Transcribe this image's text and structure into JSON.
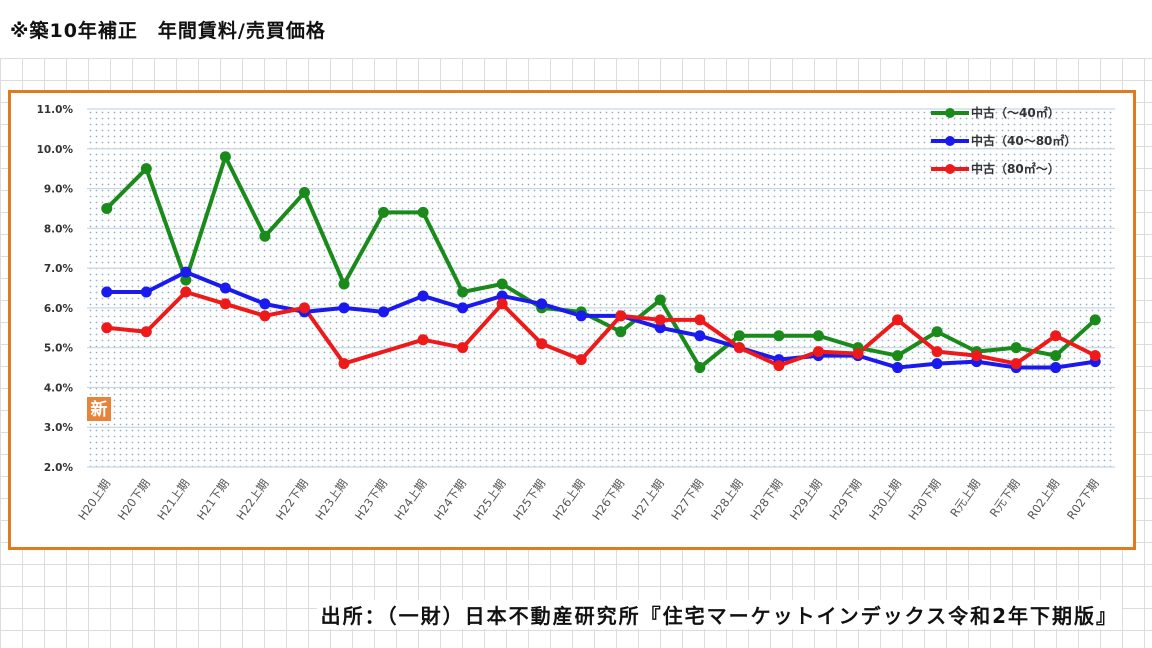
{
  "heading": "※築10年補正　年間賃料/売買価格",
  "source_note": "出所：（一財）日本不動産研究所『住宅マーケットインデックス令和2年下期版』",
  "badge": "新",
  "colors": {
    "frame": "#e07b1f",
    "green": "#1a8a1a",
    "blue": "#1a1aee",
    "red": "#ee1a1a",
    "badge": "#e8843a"
  },
  "chart_data": {
    "type": "line",
    "title": "",
    "xlabel": "",
    "ylabel": "",
    "ylim": [
      2.0,
      11.0
    ],
    "y_ticks": [
      "2.0%",
      "3.0%",
      "4.0%",
      "5.0%",
      "6.0%",
      "7.0%",
      "8.0%",
      "9.0%",
      "10.0%",
      "11.0%"
    ],
    "grid": true,
    "legend_position": "top-right",
    "categories": [
      "H20上期",
      "H20下期",
      "H21上期",
      "H21下期",
      "H22上期",
      "H22下期",
      "H23上期",
      "H23下期",
      "H24上期",
      "H24下期",
      "H25上期",
      "H25下期",
      "H26上期",
      "H26下期",
      "H27上期",
      "H27下期",
      "H28上期",
      "H28下期",
      "H29上期",
      "H29下期",
      "H30上期",
      "H30下期",
      "R元上期",
      "R元下期",
      "R02上期",
      "R02下期"
    ],
    "series": [
      {
        "name": "中古（～40㎡）",
        "color": "#1a8a1a",
        "values": [
          8.5,
          9.5,
          6.7,
          9.8,
          7.8,
          8.9,
          6.6,
          8.4,
          8.4,
          6.4,
          6.6,
          6.0,
          5.9,
          5.4,
          6.2,
          4.5,
          5.3,
          5.3,
          5.3,
          5.0,
          4.8,
          5.4,
          4.9,
          5.0,
          4.8,
          5.7
        ]
      },
      {
        "name": "中古（40～80㎡）",
        "color": "#1a1aee",
        "values": [
          6.4,
          6.4,
          6.9,
          6.5,
          6.1,
          5.9,
          6.0,
          5.9,
          6.3,
          6.0,
          6.3,
          6.1,
          5.8,
          5.8,
          5.5,
          5.3,
          5.0,
          4.7,
          4.8,
          4.8,
          4.5,
          4.6,
          4.65,
          4.5,
          4.5,
          4.65
        ]
      },
      {
        "name": "中古（80㎡～）",
        "color": "#ee1a1a",
        "values": [
          5.5,
          5.4,
          6.4,
          6.1,
          5.8,
          6.0,
          4.6,
          null,
          5.2,
          5.0,
          6.1,
          5.1,
          4.7,
          5.8,
          5.7,
          5.7,
          5.0,
          4.55,
          4.9,
          4.85,
          5.7,
          4.9,
          4.8,
          4.6,
          5.3,
          4.8
        ]
      }
    ]
  }
}
